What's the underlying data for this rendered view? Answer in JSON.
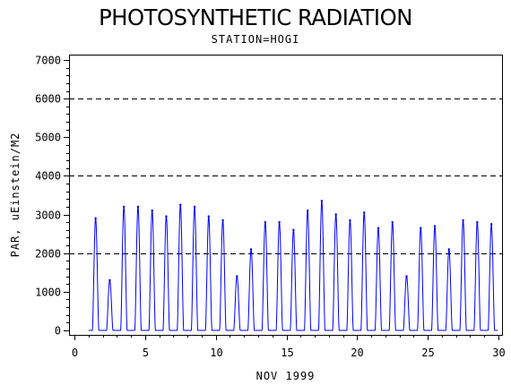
{
  "chart_data": {
    "type": "line",
    "title": "PHOTOSYNTHETIC RADIATION",
    "subtitle": "STATION=HOGI",
    "xlabel": "NOV 1999",
    "ylabel": "PAR, uEinstein/M2",
    "xlim": [
      0,
      30
    ],
    "ylim": [
      0,
      7000
    ],
    "xticks": [
      0,
      5,
      10,
      15,
      20,
      25,
      30
    ],
    "yticks": [
      0,
      1000,
      2000,
      3000,
      4000,
      5000,
      6000,
      7000
    ],
    "reference_lines": [
      2000,
      4000,
      6000
    ],
    "series_color": "#0000ff",
    "daily_peaks": [
      {
        "day": 1,
        "peak": 2900
      },
      {
        "day": 2,
        "peak": 1300
      },
      {
        "day": 3,
        "peak": 3200
      },
      {
        "day": 4,
        "peak": 3200
      },
      {
        "day": 5,
        "peak": 3100
      },
      {
        "day": 6,
        "peak": 2950
      },
      {
        "day": 7,
        "peak": 3250
      },
      {
        "day": 8,
        "peak": 3200
      },
      {
        "day": 9,
        "peak": 2950
      },
      {
        "day": 10,
        "peak": 2850
      },
      {
        "day": 11,
        "peak": 1400
      },
      {
        "day": 12,
        "peak": 2100
      },
      {
        "day": 13,
        "peak": 2800
      },
      {
        "day": 14,
        "peak": 2800
      },
      {
        "day": 15,
        "peak": 2600
      },
      {
        "day": 16,
        "peak": 3100
      },
      {
        "day": 17,
        "peak": 3350
      },
      {
        "day": 18,
        "peak": 3000
      },
      {
        "day": 19,
        "peak": 2850
      },
      {
        "day": 20,
        "peak": 3050
      },
      {
        "day": 21,
        "peak": 2650
      },
      {
        "day": 22,
        "peak": 2800
      },
      {
        "day": 23,
        "peak": 1400
      },
      {
        "day": 24,
        "peak": 2650
      },
      {
        "day": 25,
        "peak": 2700
      },
      {
        "day": 26,
        "peak": 2100
      },
      {
        "day": 27,
        "peak": 2850
      },
      {
        "day": 28,
        "peak": 2800
      },
      {
        "day": 29,
        "peak": 2750
      }
    ]
  }
}
